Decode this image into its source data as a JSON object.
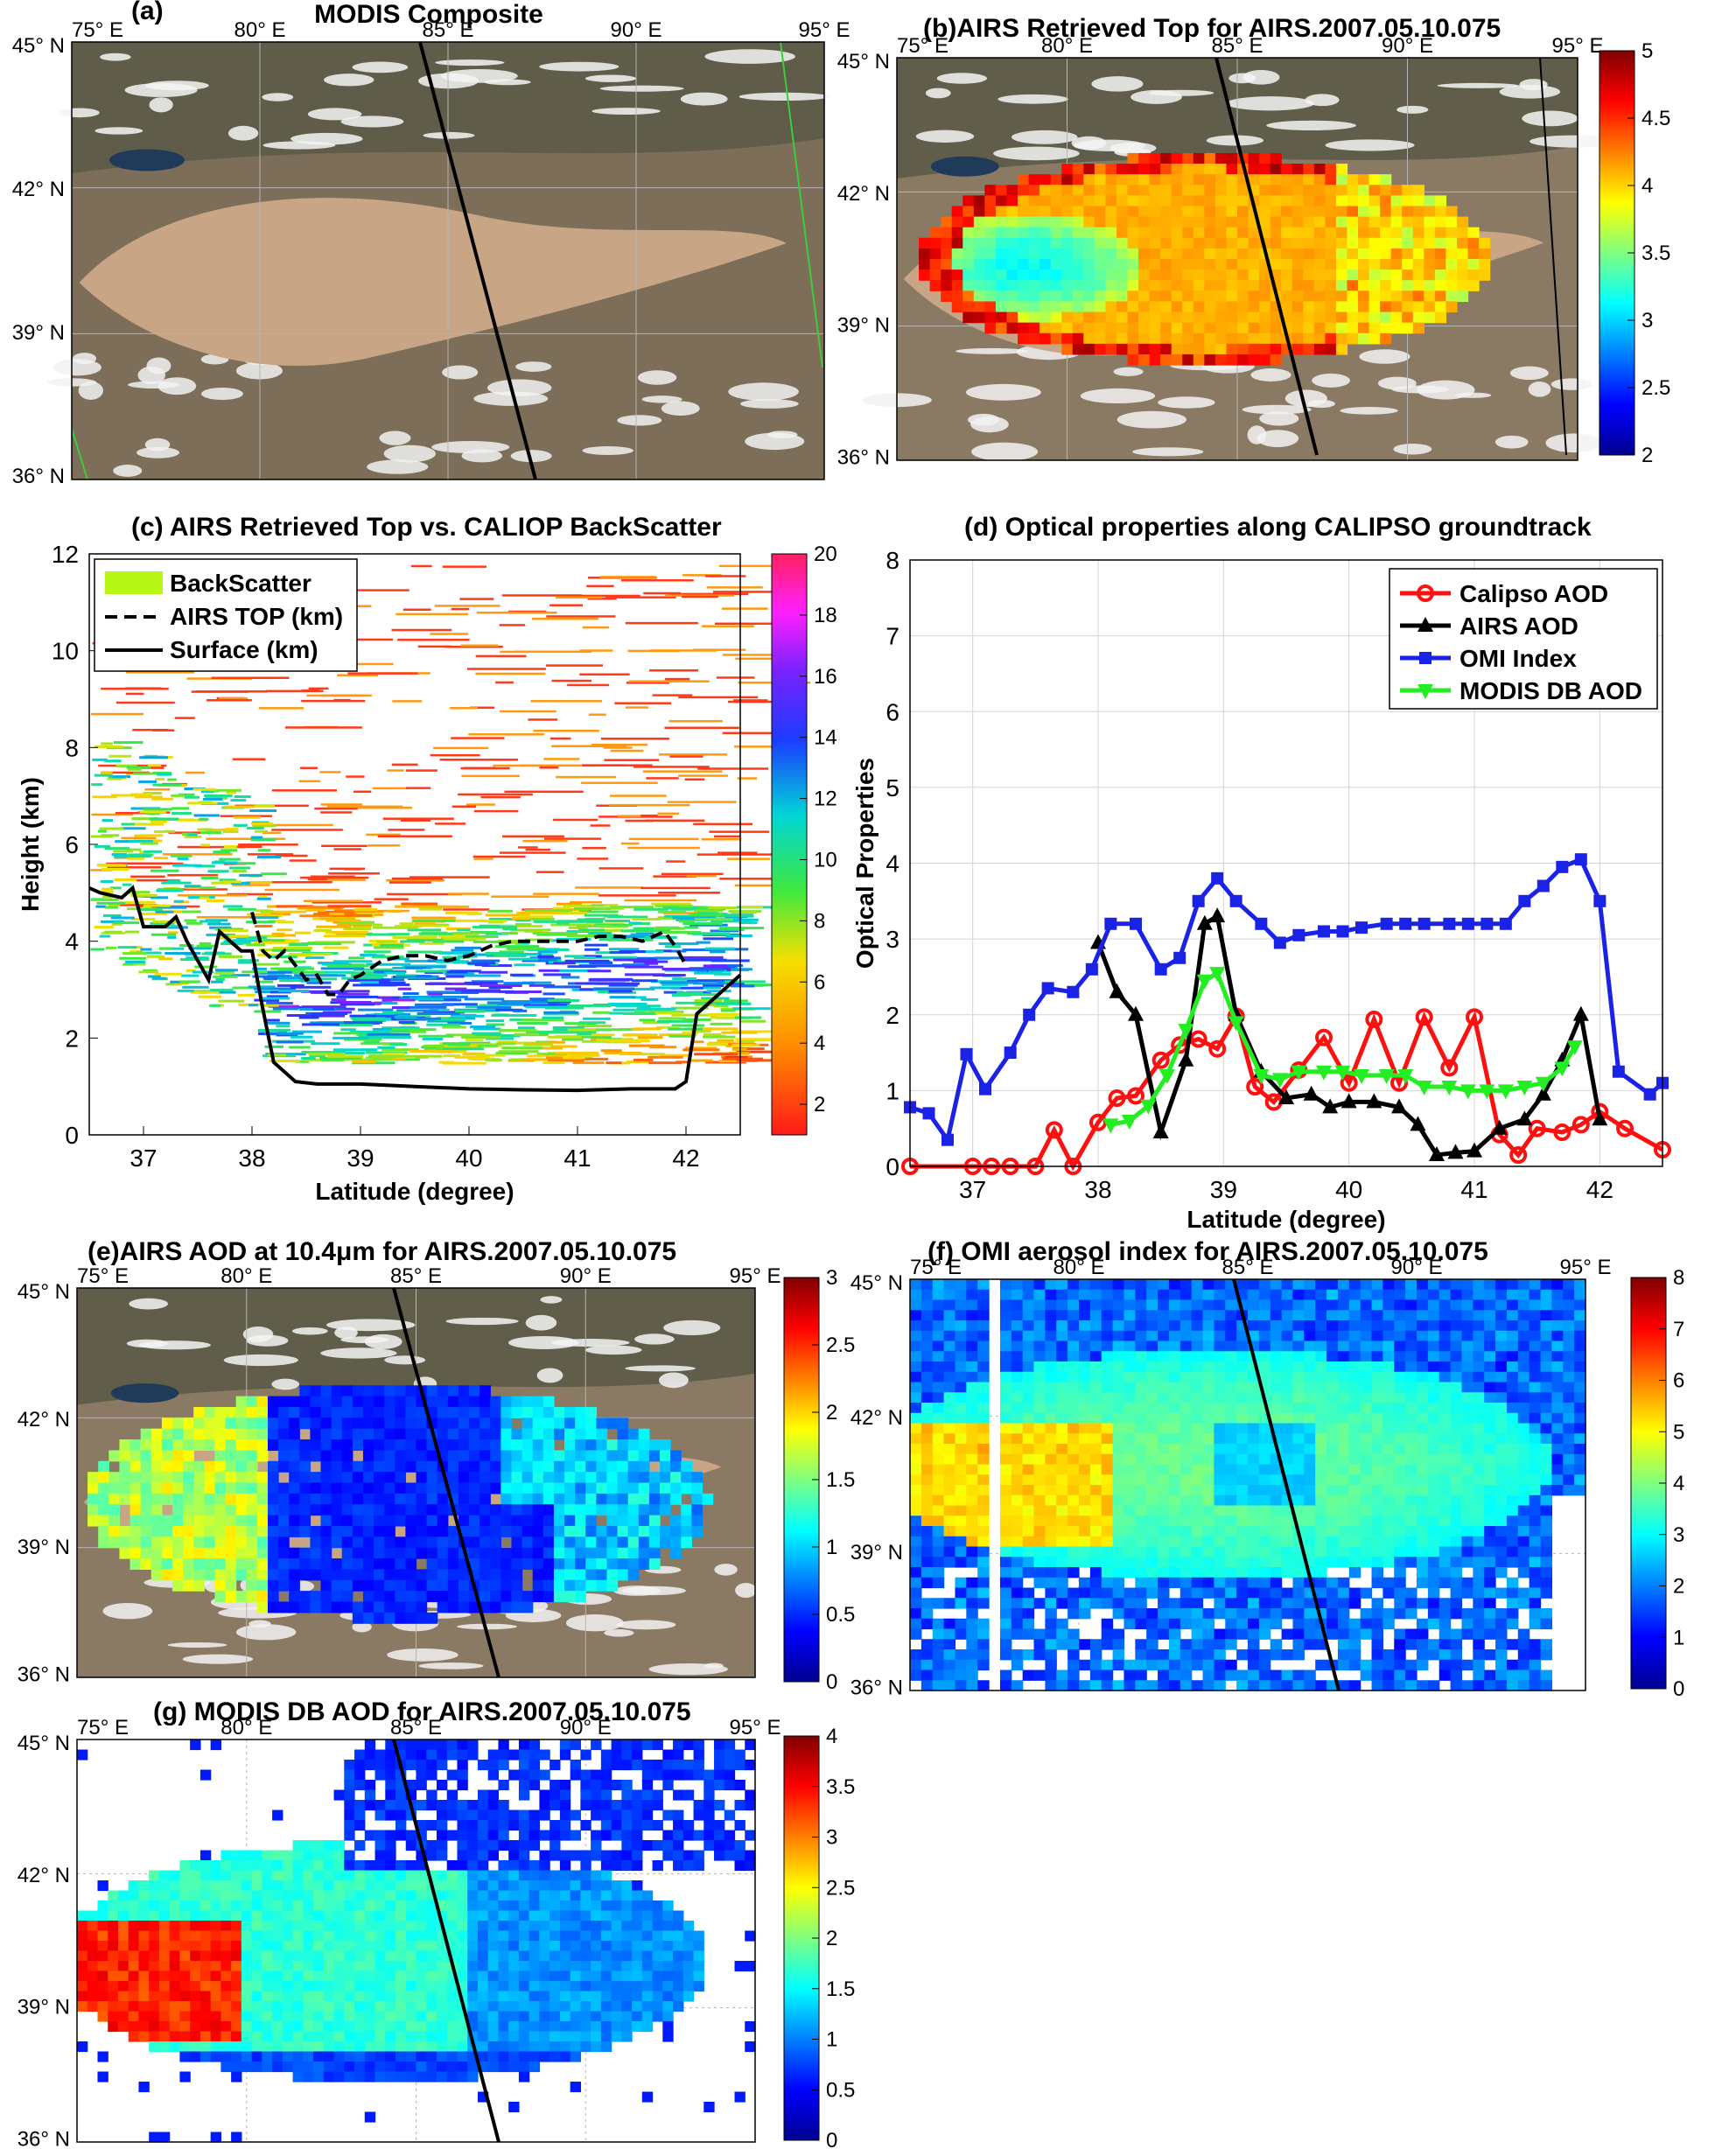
{
  "figure": {
    "panels": {
      "a": {
        "label": "(a)",
        "title": "MODIS Composite"
      },
      "b": {
        "title": "(b)AIRS Retrieved Top for AIRS.2007.05.10.075"
      },
      "c": {
        "title": "(c)  AIRS Retrieved Top vs. CALIOP BackScatter"
      },
      "d": {
        "title": "(d)  Optical properties along CALIPSO groundtrack"
      },
      "e": {
        "title": "(e)AIRS AOD at 10.4μm for AIRS.2007.05.10.075"
      },
      "f": {
        "title": "(f)  OMI aerosol index for AIRS.2007.05.10.075"
      },
      "g": {
        "title": "(g)  MODIS DB AOD for AIRS.2007.05.10.075"
      }
    },
    "map_ticks": {
      "lon": [
        "75° E",
        "80° E",
        "85° E",
        "90° E",
        "95° E"
      ],
      "lat": [
        "45° N",
        "42° N",
        "39° N",
        "36° N"
      ]
    },
    "colors": {
      "calipso": "#ff1010",
      "airs": "#000000",
      "omi": "#1a22e6",
      "modis": "#22ee22",
      "backscatter_legend": "#b6f716",
      "desert": "#c8a584"
    }
  },
  "chart_data": [
    {
      "panel": "b",
      "type": "heatmap",
      "colorbar": {
        "ticks": [
          "2",
          "2.5",
          "3",
          "3.5",
          "4",
          "4.5",
          "5"
        ],
        "range": [
          2,
          5
        ]
      }
    },
    {
      "panel": "c",
      "type": "heatmap",
      "title": "(c)  AIRS Retrieved Top vs. CALIOP BackScatter",
      "xlabel": "Latitude (degree)",
      "ylabel": "Height (km)",
      "xlim": [
        36.5,
        42.5
      ],
      "ylim": [
        0,
        12
      ],
      "xticks": [
        37,
        38,
        39,
        40,
        41,
        42
      ],
      "yticks": [
        0,
        2,
        4,
        6,
        8,
        10,
        12
      ],
      "colorbar": {
        "ticks": [
          "2",
          "4",
          "6",
          "8",
          "10",
          "12",
          "14",
          "16",
          "18",
          "20"
        ],
        "range": [
          0,
          20
        ]
      },
      "legend": [
        "BackScatter",
        "AIRS TOP (km)",
        "Surface (km)"
      ],
      "legend_position": "top-left",
      "series": [
        {
          "name": "AIRS TOP (km)",
          "style": "dashed",
          "x": [
            38.0,
            38.1,
            38.2,
            38.3,
            38.4,
            38.5,
            38.6,
            38.7,
            38.8,
            38.9,
            39.0,
            39.2,
            39.4,
            39.6,
            39.8,
            40.0,
            40.2,
            40.4,
            40.6,
            40.8,
            41.0,
            41.2,
            41.4,
            41.6,
            41.8,
            41.9,
            42.0
          ],
          "y": [
            4.6,
            3.8,
            3.6,
            3.8,
            3.5,
            3.2,
            3.3,
            2.9,
            2.9,
            3.2,
            3.3,
            3.6,
            3.7,
            3.7,
            3.6,
            3.7,
            3.9,
            4.0,
            4.0,
            4.0,
            4.0,
            4.1,
            4.1,
            4.0,
            4.2,
            3.9,
            3.5
          ]
        },
        {
          "name": "Surface (km)",
          "style": "solid",
          "x": [
            36.5,
            36.6,
            36.8,
            36.9,
            37.0,
            37.2,
            37.3,
            37.4,
            37.5,
            37.6,
            37.7,
            37.8,
            37.9,
            38.0,
            38.1,
            38.2,
            38.4,
            38.6,
            39.0,
            39.5,
            40.0,
            40.5,
            41.0,
            41.5,
            41.9,
            42.0,
            42.1,
            42.3,
            42.5
          ],
          "y": [
            5.1,
            5.0,
            4.9,
            5.1,
            4.3,
            4.3,
            4.5,
            4.0,
            3.6,
            3.2,
            4.2,
            4.0,
            3.8,
            3.8,
            2.6,
            1.5,
            1.1,
            1.05,
            1.05,
            1.0,
            0.95,
            0.93,
            0.92,
            0.95,
            0.95,
            1.1,
            2.5,
            2.9,
            3.3
          ]
        }
      ]
    },
    {
      "panel": "d",
      "type": "line",
      "title": "(d)  Optical properties along CALIPSO groundtrack",
      "xlabel": "Latitude (degree)",
      "ylabel": "Optical Properties",
      "xlim": [
        36.5,
        42.5
      ],
      "ylim": [
        0,
        8
      ],
      "xticks": [
        37,
        38,
        39,
        40,
        41,
        42
      ],
      "yticks": [
        0,
        1,
        2,
        3,
        4,
        5,
        6,
        7,
        8
      ],
      "grid": true,
      "legend_position": "top-right",
      "series": [
        {
          "name": "Calipso AOD",
          "color": "#ff1010",
          "marker": "circle",
          "x": [
            36.5,
            37.0,
            37.15,
            37.3,
            37.5,
            37.65,
            37.8,
            38.0,
            38.15,
            38.3,
            38.5,
            38.65,
            38.8,
            38.95,
            39.1,
            39.25,
            39.4,
            39.6,
            39.8,
            40.0,
            40.2,
            40.4,
            40.6,
            40.8,
            41.0,
            41.2,
            41.35,
            41.5,
            41.7,
            41.85,
            42.0,
            42.2,
            42.5
          ],
          "y": [
            0,
            0,
            0,
            0,
            0,
            0.48,
            0,
            0.58,
            0.9,
            0.93,
            1.4,
            1.6,
            1.68,
            1.55,
            1.98,
            1.05,
            0.85,
            1.27,
            1.7,
            1.1,
            1.94,
            1.1,
            1.97,
            1.3,
            1.97,
            0.42,
            0.15,
            0.5,
            0.45,
            0.55,
            0.72,
            0.5,
            0.22
          ]
        },
        {
          "name": "AIRS AOD",
          "color": "#000000",
          "marker": "triangle",
          "x": [
            38.0,
            38.15,
            38.3,
            38.5,
            38.7,
            38.85,
            38.95,
            39.1,
            39.3,
            39.5,
            39.7,
            39.85,
            40.0,
            40.2,
            40.4,
            40.55,
            40.7,
            40.85,
            41.0,
            41.2,
            41.4,
            41.55,
            41.7,
            41.85,
            42.0
          ],
          "y": [
            2.95,
            2.3,
            2.0,
            0.45,
            1.4,
            3.2,
            3.3,
            2.0,
            1.25,
            0.9,
            0.95,
            0.78,
            0.85,
            0.85,
            0.78,
            0.55,
            0.15,
            0.18,
            0.2,
            0.5,
            0.62,
            0.95,
            1.4,
            2.0,
            0.62
          ]
        },
        {
          "name": "OMI Index",
          "color": "#1a22e6",
          "marker": "square",
          "x": [
            36.5,
            36.65,
            36.8,
            36.95,
            37.1,
            37.3,
            37.45,
            37.6,
            37.8,
            37.95,
            38.1,
            38.3,
            38.5,
            38.65,
            38.8,
            38.95,
            39.1,
            39.3,
            39.45,
            39.6,
            39.8,
            39.95,
            40.1,
            40.3,
            40.45,
            40.6,
            40.8,
            40.95,
            41.1,
            41.25,
            41.4,
            41.55,
            41.7,
            41.85,
            42.0,
            42.15,
            42.4,
            42.5
          ],
          "y": [
            0.78,
            0.7,
            0.35,
            1.48,
            1.02,
            1.5,
            2.0,
            2.35,
            2.3,
            2.6,
            3.2,
            3.2,
            2.6,
            2.75,
            3.5,
            3.8,
            3.5,
            3.2,
            2.95,
            3.05,
            3.1,
            3.1,
            3.15,
            3.2,
            3.2,
            3.2,
            3.2,
            3.2,
            3.2,
            3.2,
            3.5,
            3.7,
            3.95,
            4.05,
            3.5,
            1.25,
            0.95,
            1.1
          ]
        },
        {
          "name": "MODIS DB AOD",
          "color": "#22ee22",
          "marker": "triangle-down",
          "x": [
            38.1,
            38.25,
            38.4,
            38.55,
            38.7,
            38.85,
            38.95,
            39.1,
            39.3,
            39.45,
            39.6,
            39.8,
            39.95,
            40.1,
            40.3,
            40.45,
            40.6,
            40.8,
            40.95,
            41.1,
            41.25,
            41.4,
            41.55,
            41.7,
            41.8
          ],
          "y": [
            0.55,
            0.6,
            0.8,
            1.2,
            1.8,
            2.45,
            2.55,
            1.9,
            1.2,
            1.15,
            1.25,
            1.25,
            1.25,
            1.2,
            1.2,
            1.2,
            1.05,
            1.05,
            1.0,
            1.0,
            1.0,
            1.05,
            1.1,
            1.3,
            1.58
          ]
        }
      ]
    },
    {
      "panel": "e",
      "type": "heatmap",
      "colorbar": {
        "ticks": [
          "0",
          "0.5",
          "1",
          "1.5",
          "2",
          "2.5",
          "3"
        ],
        "range": [
          0,
          3
        ]
      }
    },
    {
      "panel": "f",
      "type": "heatmap",
      "colorbar": {
        "ticks": [
          "0",
          "1",
          "2",
          "3",
          "4",
          "5",
          "6",
          "7",
          "8"
        ],
        "range": [
          0,
          8
        ]
      }
    },
    {
      "panel": "g",
      "type": "heatmap",
      "colorbar": {
        "ticks": [
          "0",
          "0.5",
          "1",
          "1.5",
          "2",
          "2.5",
          "3",
          "3.5",
          "4"
        ],
        "range": [
          0,
          4
        ]
      }
    }
  ]
}
